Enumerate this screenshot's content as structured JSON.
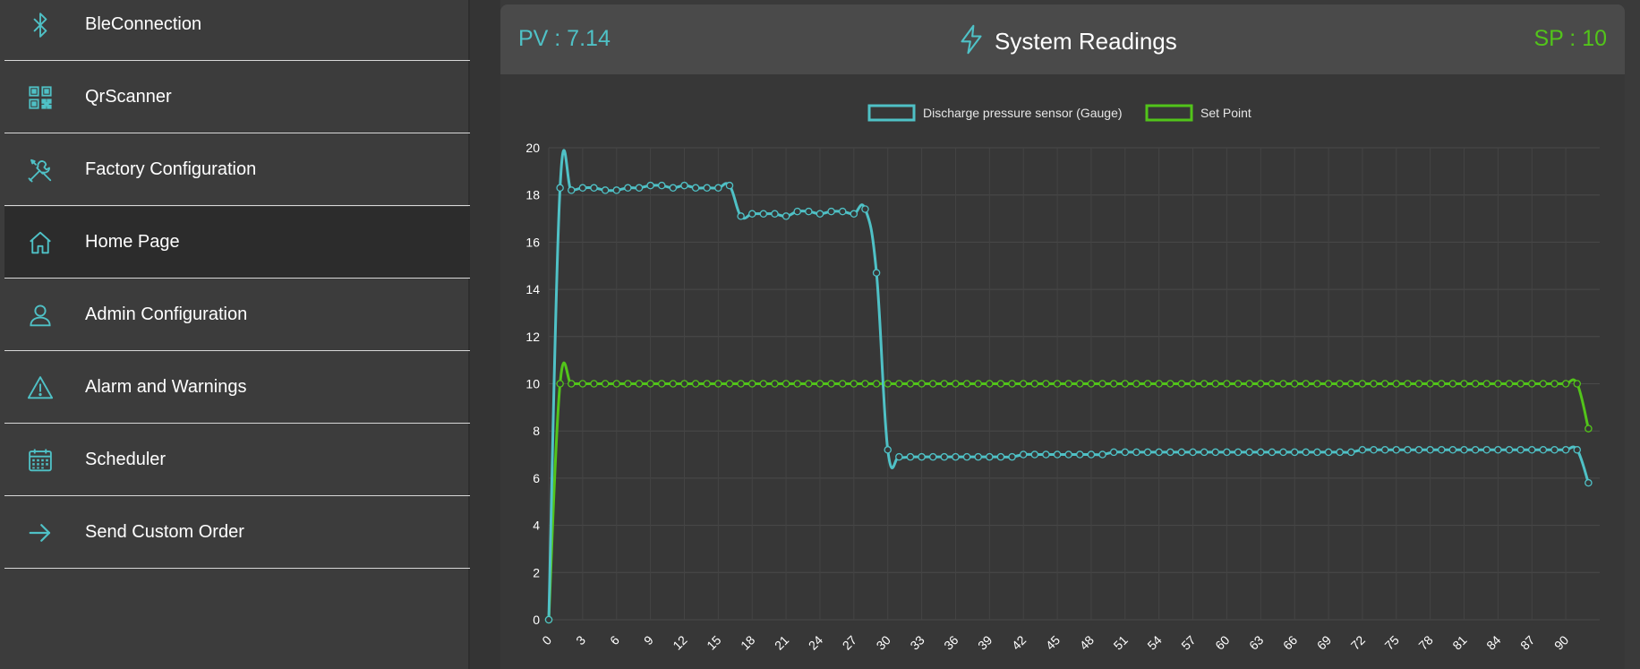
{
  "sidebar": {
    "items": [
      {
        "label": "BleConnection",
        "icon": "bluetooth-icon",
        "active": false
      },
      {
        "label": "QrScanner",
        "icon": "qr-code-icon",
        "active": false
      },
      {
        "label": "Factory Configuration",
        "icon": "tools-icon",
        "active": false
      },
      {
        "label": "Home Page",
        "icon": "home-icon",
        "active": true
      },
      {
        "label": "Admin Configuration",
        "icon": "user-icon",
        "active": false
      },
      {
        "label": "Alarm and Warnings",
        "icon": "warning-icon",
        "active": false
      },
      {
        "label": "Scheduler",
        "icon": "calendar-icon",
        "active": false
      },
      {
        "label": "Send Custom Order",
        "icon": "arrow-right-icon",
        "active": false
      }
    ]
  },
  "header": {
    "pv": "PV : 7.14",
    "title": "System Readings",
    "sp": "SP : 10"
  },
  "colors": {
    "accent": "#4fc1c6",
    "setpoint": "#52c41a"
  },
  "chart_data": {
    "type": "line",
    "x": [
      0,
      1,
      2,
      3,
      4,
      5,
      6,
      7,
      8,
      9,
      10,
      11,
      12,
      13,
      14,
      15,
      16,
      17,
      18,
      19,
      20,
      21,
      22,
      23,
      24,
      25,
      26,
      27,
      28,
      29,
      30,
      31,
      32,
      33,
      34,
      35,
      36,
      37,
      38,
      39,
      40,
      41,
      42,
      43,
      44,
      45,
      46,
      47,
      48,
      49,
      50,
      51,
      52,
      53,
      54,
      55,
      56,
      57,
      58,
      59,
      60,
      61,
      62,
      63,
      64,
      65,
      66,
      67,
      68,
      69,
      70,
      71,
      72,
      73,
      74,
      75,
      76,
      77,
      78,
      79,
      80,
      81,
      82,
      83,
      84,
      85,
      86,
      87,
      88,
      89,
      90,
      91,
      92
    ],
    "x_tick_labels": [
      "0",
      "3",
      "6",
      "9",
      "12",
      "15",
      "18",
      "21",
      "24",
      "27",
      "30",
      "33",
      "36",
      "39",
      "42",
      "45",
      "48",
      "51",
      "54",
      "57",
      "60",
      "63",
      "66",
      "69",
      "72",
      "75",
      "78",
      "81",
      "84",
      "87",
      "90"
    ],
    "ylim": [
      0,
      20
    ],
    "y_ticks": [
      0,
      2,
      4,
      6,
      8,
      10,
      12,
      14,
      16,
      18,
      20
    ],
    "legend_position": "top",
    "grid": true,
    "series": [
      {
        "name": "Discharge pressure sensor (Gauge)",
        "color": "#4fc1c6",
        "values": [
          0,
          18.3,
          18.2,
          18.3,
          18.3,
          18.2,
          18.2,
          18.3,
          18.3,
          18.4,
          18.4,
          18.3,
          18.4,
          18.3,
          18.3,
          18.3,
          18.4,
          17.1,
          17.2,
          17.2,
          17.2,
          17.1,
          17.3,
          17.3,
          17.2,
          17.3,
          17.3,
          17.2,
          17.4,
          14.7,
          7.2,
          6.9,
          6.9,
          6.9,
          6.9,
          6.9,
          6.9,
          6.9,
          6.9,
          6.9,
          6.9,
          6.9,
          7.0,
          7.0,
          7.0,
          7.0,
          7.0,
          7.0,
          7.0,
          7.0,
          7.1,
          7.1,
          7.1,
          7.1,
          7.1,
          7.1,
          7.1,
          7.1,
          7.1,
          7.1,
          7.1,
          7.1,
          7.1,
          7.1,
          7.1,
          7.1,
          7.1,
          7.1,
          7.1,
          7.1,
          7.1,
          7.1,
          7.2,
          7.2,
          7.2,
          7.2,
          7.2,
          7.2,
          7.2,
          7.2,
          7.2,
          7.2,
          7.2,
          7.2,
          7.2,
          7.2,
          7.2,
          7.2,
          7.2,
          7.2,
          7.2,
          7.2,
          5.8
        ]
      },
      {
        "name": "Set Point",
        "color": "#52c41a",
        "values": [
          0,
          10,
          10,
          10,
          10,
          10,
          10,
          10,
          10,
          10,
          10,
          10,
          10,
          10,
          10,
          10,
          10,
          10,
          10,
          10,
          10,
          10,
          10,
          10,
          10,
          10,
          10,
          10,
          10,
          10,
          10,
          10,
          10,
          10,
          10,
          10,
          10,
          10,
          10,
          10,
          10,
          10,
          10,
          10,
          10,
          10,
          10,
          10,
          10,
          10,
          10,
          10,
          10,
          10,
          10,
          10,
          10,
          10,
          10,
          10,
          10,
          10,
          10,
          10,
          10,
          10,
          10,
          10,
          10,
          10,
          10,
          10,
          10,
          10,
          10,
          10,
          10,
          10,
          10,
          10,
          10,
          10,
          10,
          10,
          10,
          10,
          10,
          10,
          10,
          10,
          10,
          10,
          8.1
        ]
      }
    ]
  }
}
